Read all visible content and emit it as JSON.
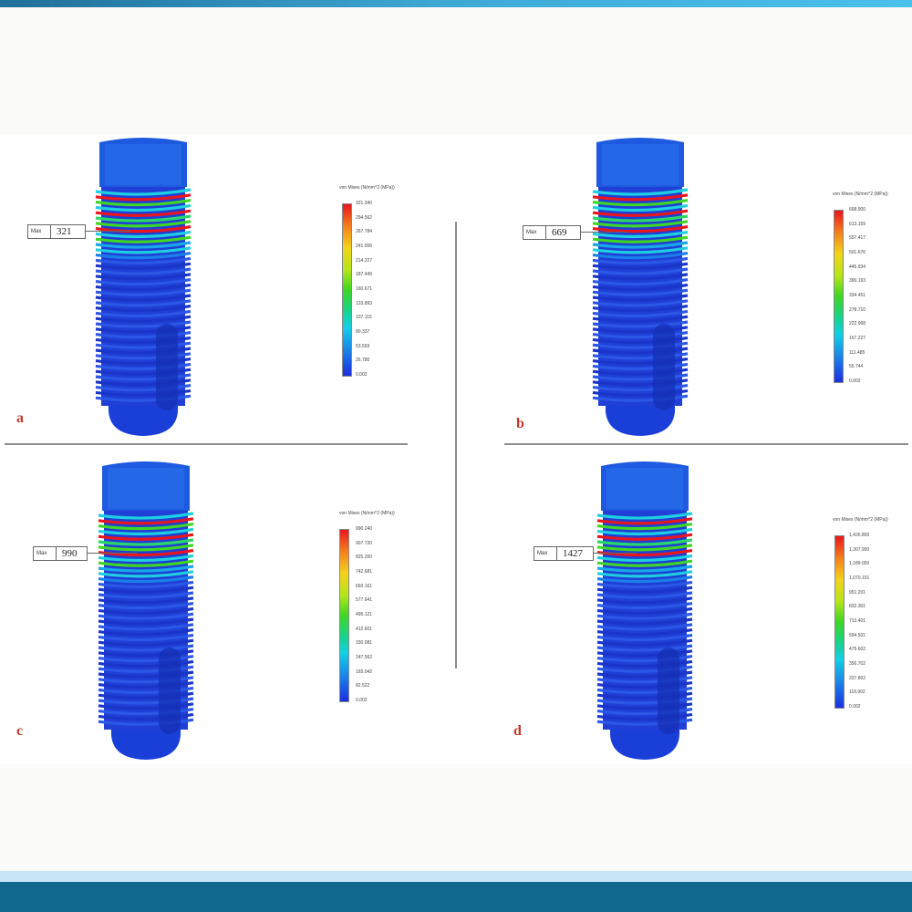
{
  "colors": {
    "accent_bar": "#11688f",
    "light_band": "#c7e6f5",
    "max_stress": "#e8161e",
    "min_stress": "#1b2fe0"
  },
  "panels": [
    {
      "letter": "a",
      "max_label": "Max",
      "max_value": "321",
      "legend_title": "von Mises (N/mm^2 (MPa))",
      "legend_values": [
        "321.340",
        "294.562",
        "267.784",
        "241.006",
        "214.227",
        "187.449",
        "160.671",
        "133.893",
        "107.115",
        "80.337",
        "53.559",
        "26.780",
        "0.002"
      ]
    },
    {
      "letter": "b",
      "max_label": "Max",
      "max_value": "669",
      "legend_title": "von Mises (N/mm^2 (MPa))",
      "legend_values": [
        "668.900",
        "613.159",
        "557.417",
        "501.676",
        "445.934",
        "390.193",
        "334.451",
        "278.710",
        "222.968",
        "167.227",
        "111.485",
        "55.744",
        "0.002"
      ]
    },
    {
      "letter": "c",
      "max_label": "Max",
      "max_value": "990",
      "legend_title": "von Mises (N/mm^2 (MPa))",
      "legend_values": [
        "990.240",
        "907.720",
        "825.200",
        "742.681",
        "660.161",
        "577.641",
        "495.121",
        "412.601",
        "330.081",
        "247.562",
        "165.042",
        "82.522",
        "0.002"
      ]
    },
    {
      "letter": "d",
      "max_label": "Max",
      "max_value": "1427",
      "legend_title": "von Mises (N/mm^2 (MPa))",
      "legend_values": [
        "1,426.800",
        "1,307.900",
        "1,189.000",
        "1,070.101",
        "951.201",
        "832.301",
        "713.401",
        "594.501",
        "475.602",
        "356.702",
        "237.802",
        "118.902",
        "0.002"
      ]
    }
  ]
}
